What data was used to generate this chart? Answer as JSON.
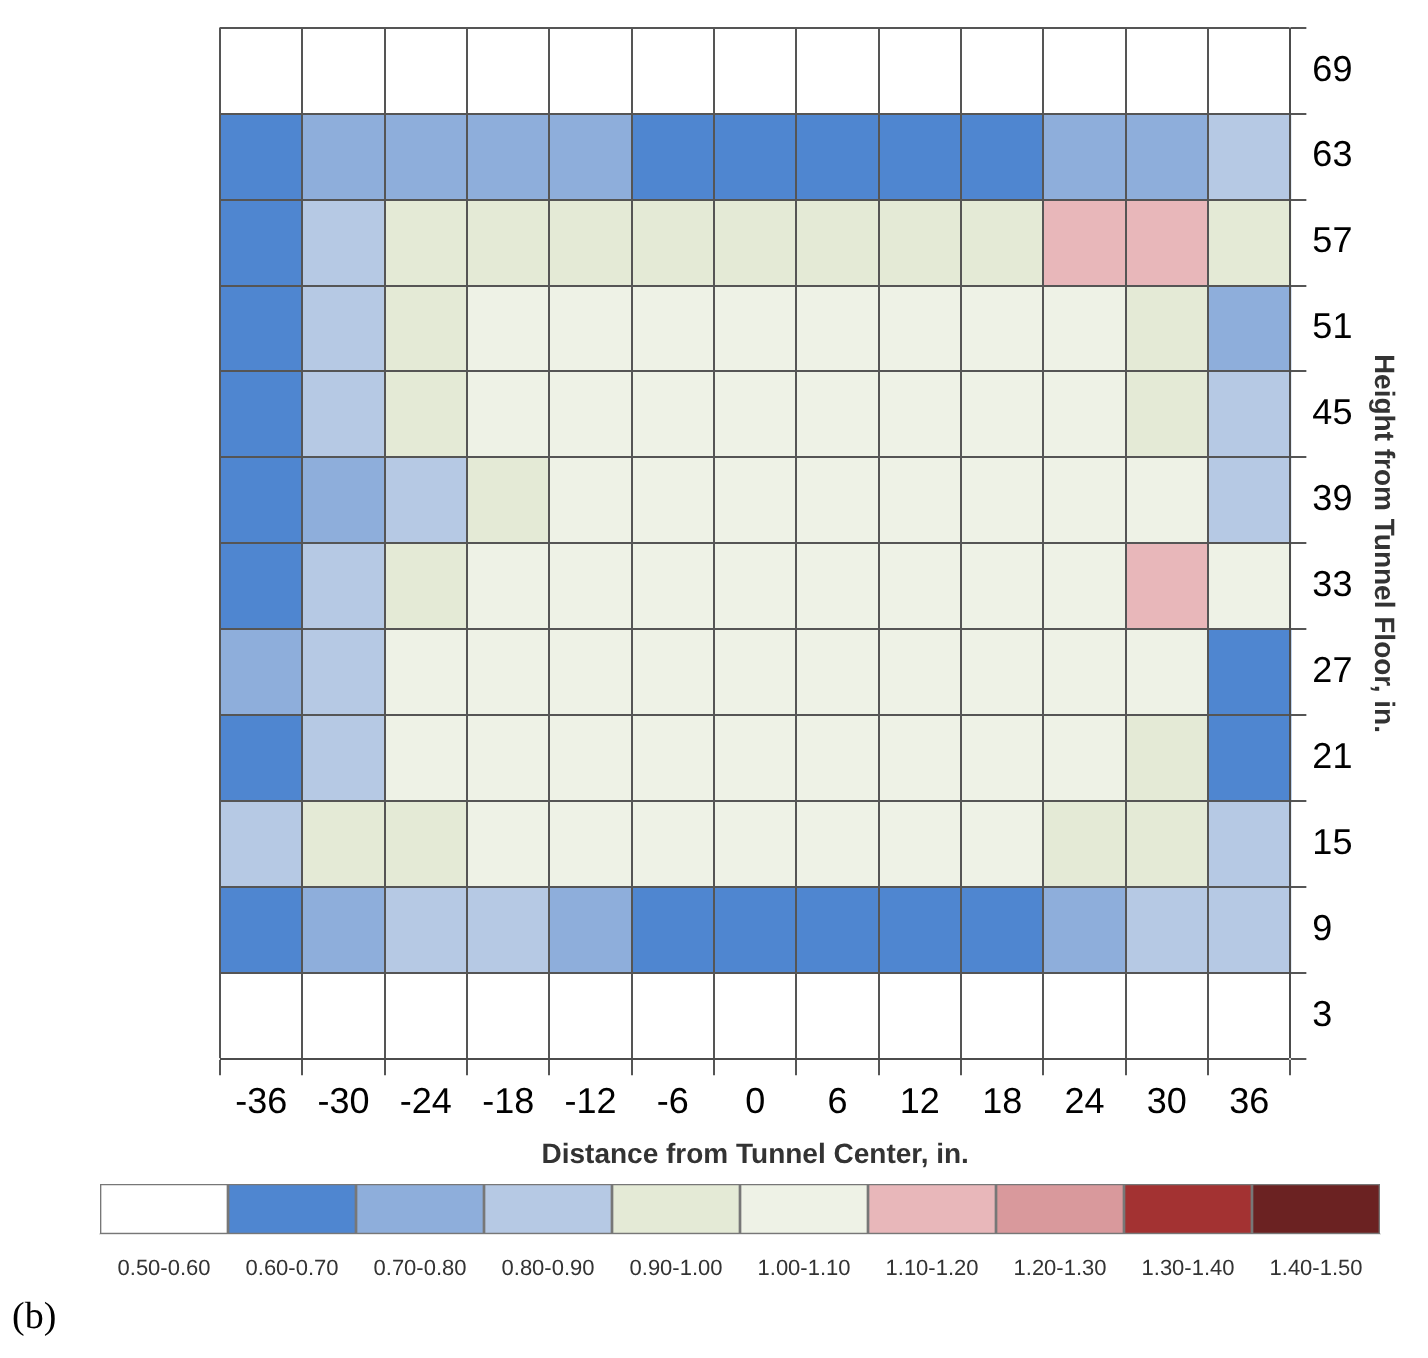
{
  "chart_data": {
    "type": "heatmap",
    "xlabel": "Distance from Tunnel Center, in.",
    "ylabel": "Height from Tunnel Floor, in.",
    "categories": [
      "-36",
      "-30",
      "-24",
      "-18",
      "-12",
      "-6",
      "0",
      "6",
      "12",
      "18",
      "24",
      "30",
      "36"
    ],
    "y_categories": [
      "69",
      "63",
      "57",
      "51",
      "45",
      "39",
      "33",
      "27",
      "21",
      "15",
      "9",
      "3"
    ],
    "cells": [
      [
        0.55,
        0.55,
        0.55,
        0.55,
        0.55,
        0.55,
        0.55,
        0.55,
        0.55,
        0.55,
        0.55,
        0.55,
        0.55
      ],
      [
        0.65,
        0.72,
        0.72,
        0.72,
        0.72,
        0.68,
        0.65,
        0.65,
        0.62,
        0.7,
        0.75,
        0.75,
        0.8
      ],
      [
        0.65,
        0.85,
        0.95,
        0.95,
        0.95,
        0.95,
        0.95,
        0.95,
        0.95,
        0.95,
        1.15,
        1.15,
        0.95
      ],
      [
        0.65,
        0.8,
        0.95,
        1.05,
        1.05,
        1.05,
        1.05,
        1.05,
        1.05,
        1.05,
        1.05,
        0.95,
        0.75
      ],
      [
        0.65,
        0.8,
        0.95,
        1.0,
        1.0,
        1.05,
        1.05,
        1.0,
        1.0,
        1.05,
        1.05,
        0.95,
        0.8
      ],
      [
        0.62,
        0.75,
        0.85,
        0.95,
        1.05,
        1.05,
        1.05,
        1.05,
        1.0,
        1.0,
        1.0,
        1.0,
        0.85
      ],
      [
        0.65,
        0.8,
        0.95,
        1.05,
        1.05,
        1.05,
        1.05,
        1.05,
        1.05,
        1.05,
        1.05,
        1.15,
        1.05
      ],
      [
        0.75,
        0.85,
        1.0,
        1.05,
        1.05,
        1.05,
        1.05,
        1.05,
        1.0,
        1.0,
        1.0,
        1.0,
        0.65
      ],
      [
        0.65,
        0.85,
        1.05,
        1.05,
        1.05,
        1.05,
        1.05,
        1.05,
        1.05,
        1.0,
        1.0,
        0.95,
        0.65
      ],
      [
        0.85,
        0.95,
        0.95,
        1.0,
        1.0,
        1.0,
        1.0,
        1.0,
        1.0,
        1.0,
        0.95,
        0.95,
        0.8
      ],
      [
        0.65,
        0.75,
        0.8,
        0.8,
        0.75,
        0.7,
        0.68,
        0.68,
        0.68,
        0.68,
        0.75,
        0.85,
        0.85
      ],
      [
        0.55,
        0.55,
        0.55,
        0.55,
        0.55,
        0.55,
        0.55,
        0.55,
        0.55,
        0.55,
        0.55,
        0.55,
        0.55
      ]
    ],
    "clim": [
      0.5,
      1.5
    ],
    "cticks": [
      {
        "value": 0.55,
        "label": "0.50-0.60"
      },
      {
        "value": 0.65,
        "label": "0.60-0.70"
      },
      {
        "value": 0.75,
        "label": "0.70-0.80"
      },
      {
        "value": 0.85,
        "label": "0.80-0.90"
      },
      {
        "value": 0.95,
        "label": "0.90-1.00"
      },
      {
        "value": 1.05,
        "label": "1.00-1.10"
      },
      {
        "value": 1.15,
        "label": "1.10-1.20"
      },
      {
        "value": 1.25,
        "label": "1.20-1.30"
      },
      {
        "value": 1.35,
        "label": "1.30-1.40"
      },
      {
        "value": 1.45,
        "label": "1.40-1.50"
      }
    ],
    "colors": [
      "#ffffff",
      "#4f86d0",
      "#8eaedb",
      "#b6c9e4",
      "#e4ead6",
      "#eef2e6",
      "#e8b7ba",
      "#d9999c",
      "#a33232",
      "#6b2222"
    ],
    "grid": true,
    "annotations": [
      "(b)"
    ]
  }
}
